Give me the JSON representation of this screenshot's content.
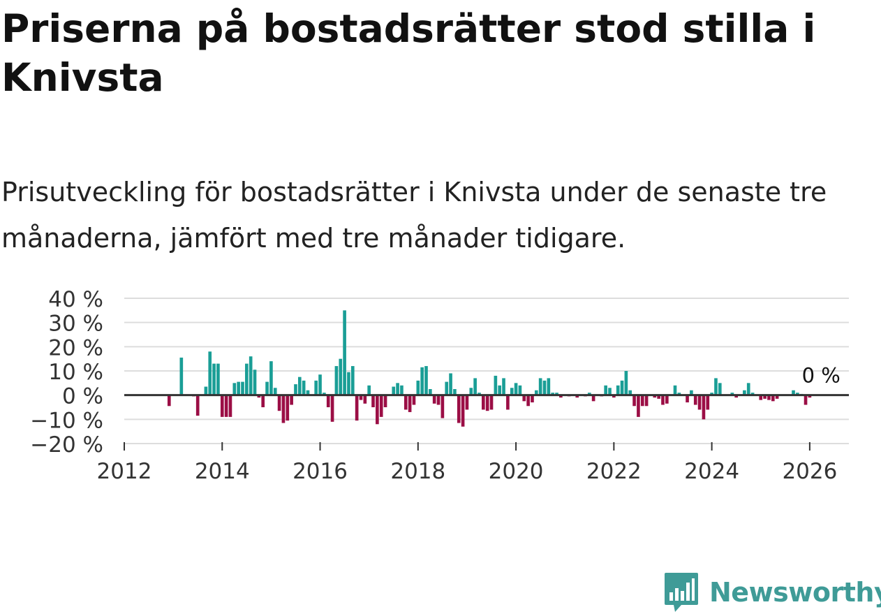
{
  "title": "Priserna på bostadsrätter stod stilla i Knivsta",
  "subtitle": "Prisutveckling för bostadsrätter i Knivsta under de senaste tre månaderna, jämfört med tre månader tidigare.",
  "brand": {
    "name": "Newsworthy",
    "color": "#3f9b97"
  },
  "chart_data": {
    "type": "bar",
    "title": "",
    "xlabel": "",
    "ylabel": "",
    "ylim": [
      -20,
      40
    ],
    "y_ticks": [
      40,
      30,
      20,
      10,
      0,
      -10,
      -20
    ],
    "y_tick_labels": [
      "40 %",
      "30 %",
      "20 %",
      "10 %",
      "0 %",
      "−10 %",
      "−20 %"
    ],
    "x_ticks": [
      2012,
      2014,
      2016,
      2018,
      2020,
      2022,
      2024,
      2026
    ],
    "x_tick_labels": [
      "2012",
      "2014",
      "2016",
      "2018",
      "2020",
      "2022",
      "2024",
      "2026"
    ],
    "start_month": "2012-12",
    "positive_color": "#1a9e96",
    "negative_color": "#9b0e45",
    "grid": true,
    "annotation": {
      "text": "0 %",
      "x_month": "2025-11",
      "value": 0
    },
    "values": [
      -4.5,
      0,
      0,
      15.5,
      0,
      0,
      -0.5,
      -8.5,
      0,
      3.5,
      18,
      13,
      13,
      -9,
      -9,
      -9,
      5,
      5.5,
      5.5,
      13,
      16,
      10.5,
      -1,
      -5,
      5.5,
      14,
      3,
      -6.5,
      -11.5,
      -10.5,
      -4,
      4.5,
      7.5,
      6,
      2,
      0,
      6,
      8.5,
      1,
      -5,
      -11,
      12,
      15,
      35,
      9.5,
      12,
      -10.5,
      -2,
      -3.5,
      4,
      -5,
      -12,
      -9,
      -5,
      0,
      3.5,
      5,
      4,
      -6,
      -7,
      -4,
      6,
      11.5,
      12,
      2.5,
      -3.5,
      -4,
      -9.5,
      5.5,
      9,
      2.5,
      -11.5,
      -13,
      -6,
      3,
      7,
      1,
      -6,
      -6.5,
      -6,
      8,
      4,
      7,
      -6,
      3,
      5,
      4,
      -2.5,
      -4.5,
      -3,
      2,
      7,
      6,
      7,
      1,
      1,
      -1,
      0,
      -0.5,
      0,
      -1,
      0,
      -0.5,
      1,
      -2.5,
      0,
      -0.5,
      4,
      3,
      -1,
      4,
      6,
      10,
      2,
      -4.5,
      -9,
      -4.5,
      -4.5,
      0,
      -1,
      -1.5,
      -4,
      -3.5,
      0,
      4,
      1,
      0,
      -3,
      2,
      -4,
      -6,
      -10,
      -6,
      1,
      7,
      5,
      0,
      0,
      1,
      -1,
      0,
      2,
      5,
      1,
      0,
      -2,
      -1.5,
      -2,
      -2.5,
      -1.5,
      0,
      0,
      0,
      2,
      1,
      0.5,
      -4,
      -1
    ]
  }
}
